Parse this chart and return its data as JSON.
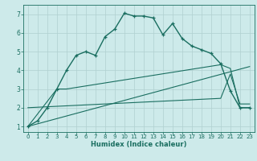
{
  "xlabel": "Humidex (Indice chaleur)",
  "bg_color": "#cdeaea",
  "grid_color": "#b0d0d0",
  "line_color": "#1a6e60",
  "xlim": [
    -0.5,
    23.5
  ],
  "ylim": [
    0.7,
    7.5
  ],
  "xticks": [
    0,
    1,
    2,
    3,
    4,
    5,
    6,
    7,
    8,
    9,
    10,
    11,
    12,
    13,
    14,
    15,
    16,
    17,
    18,
    19,
    20,
    21,
    22,
    23
  ],
  "yticks": [
    1,
    2,
    3,
    4,
    5,
    6,
    7
  ],
  "curve_main_x": [
    0,
    1,
    2,
    3,
    4,
    5,
    6,
    7,
    8,
    9,
    10,
    11,
    12,
    13,
    14,
    15,
    16,
    17,
    18,
    19,
    20,
    21,
    22,
    23
  ],
  "curve_main_y": [
    1.0,
    1.3,
    2.0,
    3.0,
    4.0,
    4.8,
    5.0,
    4.8,
    5.8,
    6.2,
    7.05,
    6.9,
    6.9,
    6.8,
    5.9,
    6.5,
    5.7,
    5.3,
    5.1,
    4.9,
    4.35,
    2.9,
    2.0,
    2.0
  ],
  "curve2_x": [
    0,
    3,
    4,
    20,
    21,
    22,
    23
  ],
  "curve2_y": [
    1.0,
    3.0,
    3.0,
    4.3,
    4.1,
    2.0,
    2.0
  ],
  "curve3_x": [
    0,
    23
  ],
  "curve3_y": [
    1.0,
    4.2
  ],
  "curve4_x": [
    0,
    20,
    21,
    22,
    23
  ],
  "curve4_y": [
    2.0,
    2.5,
    3.8,
    2.2,
    2.2
  ]
}
